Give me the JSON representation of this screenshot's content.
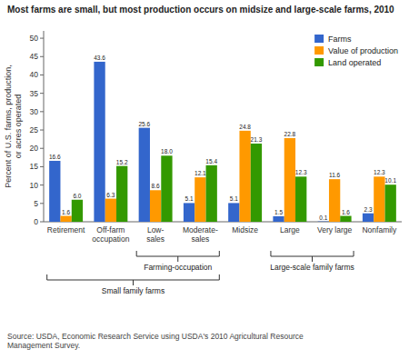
{
  "chart_data": {
    "type": "bar",
    "title": "Most farms are small, but most production occurs on midsize and large-scale farms, 2010",
    "y_label": "Percent of U.S. farms, production,\nor acres operated",
    "categories": [
      "Retirement",
      "Off-farm\noccupation",
      "Low-\nsales",
      "Moderate-\nsales",
      "Midsize",
      "Large",
      "Very large",
      "Nonfamily"
    ],
    "series": [
      {
        "name": "Farms",
        "color": "#3366CC",
        "values": [
          16.6,
          43.6,
          25.6,
          5.1,
          5.1,
          1.5,
          0.1,
          2.3
        ]
      },
      {
        "name": "Value of production",
        "color": "#FF9900",
        "values": [
          1.6,
          6.3,
          8.6,
          12.1,
          24.8,
          22.8,
          11.6,
          12.3
        ]
      },
      {
        "name": "Land operated",
        "color": "#339900",
        "values": [
          6.0,
          15.2,
          18.0,
          15.4,
          21.3,
          12.3,
          1.6,
          10.1
        ],
        "value_labels": [
          "6.0",
          "15.2",
          "18.0",
          "15.4",
          "21.3",
          "12.3",
          "1.6",
          "10.1"
        ]
      }
    ],
    "ylim": [
      0,
      52
    ],
    "yticks": [
      0,
      5,
      10,
      15,
      20,
      25,
      30,
      35,
      40,
      45,
      50
    ],
    "grid": false,
    "legend": "upper right",
    "data_labels": true,
    "annotations": [
      {
        "text": "Farming-occupation",
        "from": "Low-\nsales",
        "to": "Moderate-\nsales"
      },
      {
        "text": "Small family farms",
        "from": "Retirement",
        "to": "Moderate-\nsales"
      },
      {
        "text": "Large-scale family farms",
        "from": "Large",
        "to": "Very large"
      }
    ],
    "source": "Source: USDA, Economic Research Service using USDA's 2010 Agricultural Resource\nManagement Survey."
  }
}
